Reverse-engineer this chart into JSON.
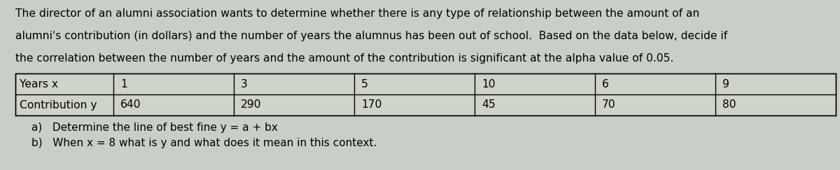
{
  "para_lines": [
    "The director of an alumni association wants to determine whether there is any type of relationship between the amount of an",
    "alumni's contribution (in dollars) and the number of years the alumnus has been out of school.  Based on the data below, decide if",
    "the correlation between the number of years and the amount of the contribution is significant at the alpha value of 0.05."
  ],
  "table": {
    "row1_label": "Years x",
    "row2_label": "Contribution y",
    "years": [
      "1",
      "3",
      "5",
      "10",
      "6",
      "9"
    ],
    "contributions": [
      "640",
      "290",
      "170",
      "45",
      "70",
      "80"
    ]
  },
  "part_a": "a)   Determine the line of best fine y = a + bx",
  "part_b": "b)   When x = 8 what is y and what does it mean in this context.",
  "bg_color": "#c8cfc8",
  "table_bg": "#cfd4c8",
  "text_color": "#000000",
  "font_size_para": 11.2,
  "font_size_table": 11.2,
  "font_size_parts": 11.0,
  "fig_width": 12.0,
  "fig_height": 2.43,
  "dpi": 100
}
